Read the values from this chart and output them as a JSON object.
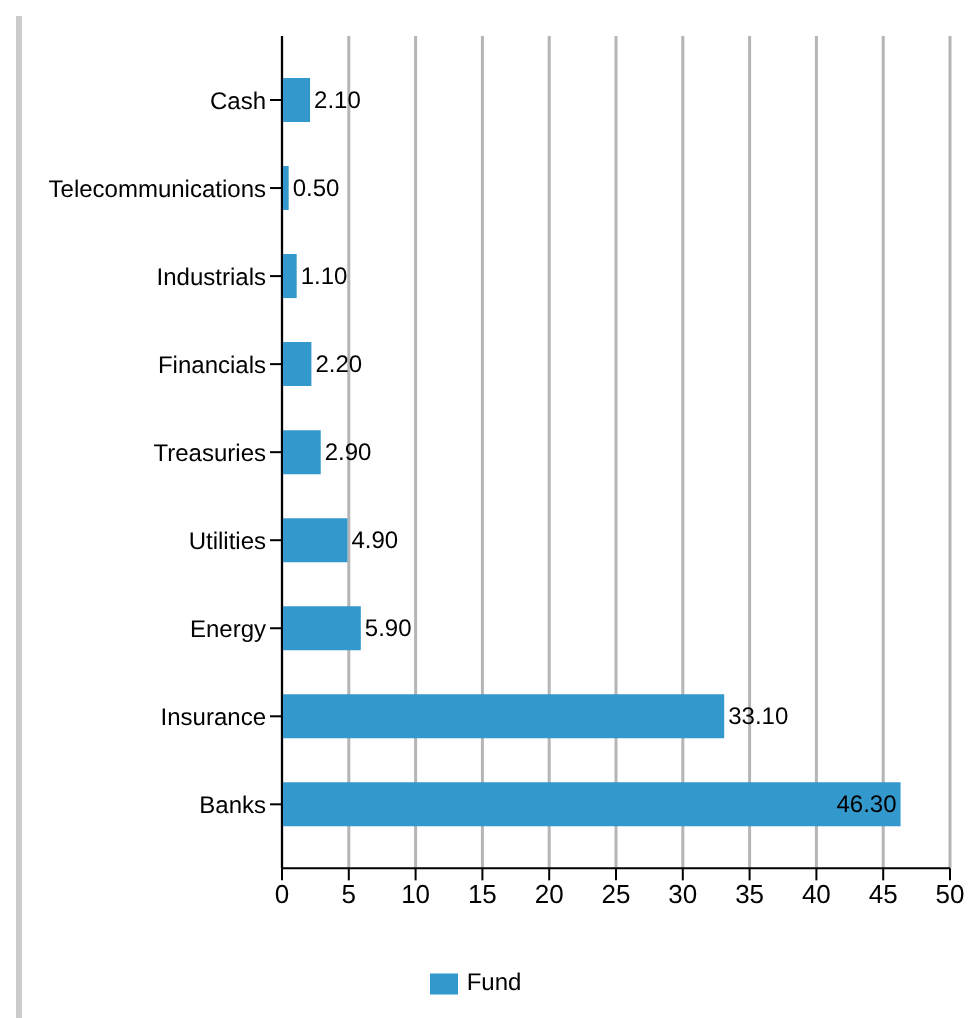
{
  "chart_data": {
    "type": "bar",
    "orientation": "horizontal",
    "categories": [
      "Cash",
      "Telecommunications",
      "Industrials",
      "Financials",
      "Treasuries",
      "Utilities",
      "Energy",
      "Insurance",
      "Banks"
    ],
    "series": [
      {
        "name": "Fund",
        "color": "#3399cc",
        "values": [
          2.1,
          0.5,
          1.1,
          2.2,
          2.9,
          4.9,
          5.9,
          33.1,
          46.3
        ],
        "value_labels": [
          "2.10",
          "0.50",
          "1.10",
          "2.20",
          "2.90",
          "4.90",
          "5.90",
          "33.10",
          "46.30"
        ]
      }
    ],
    "xlim": [
      0,
      50
    ],
    "xticks": [
      0,
      5,
      10,
      15,
      20,
      25,
      30,
      35,
      40,
      45,
      50
    ],
    "grid": "x",
    "legend": "bottom"
  }
}
